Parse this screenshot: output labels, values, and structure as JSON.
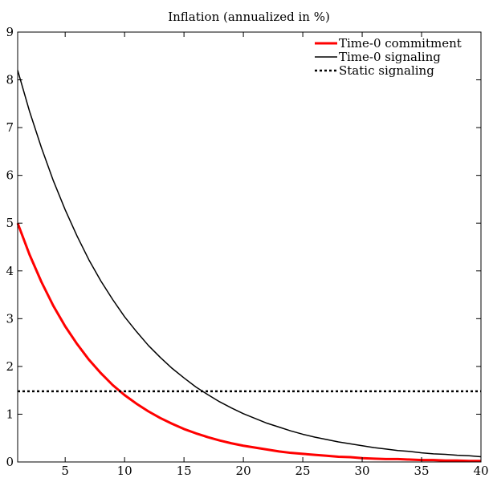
{
  "chart_data": {
    "type": "line",
    "title": "Inflation (annualized in %)",
    "xlabel": "",
    "ylabel": "",
    "xlim": [
      1,
      40
    ],
    "ylim": [
      0,
      9
    ],
    "x_ticks": [
      5,
      10,
      15,
      20,
      25,
      30,
      35,
      40
    ],
    "y_ticks": [
      0,
      1,
      2,
      3,
      4,
      5,
      6,
      7,
      8,
      9
    ],
    "grid": false,
    "legend_position": "top-right",
    "x": [
      1,
      2,
      3,
      4,
      5,
      6,
      7,
      8,
      9,
      10,
      11,
      12,
      13,
      14,
      15,
      16,
      17,
      18,
      19,
      20,
      21,
      22,
      23,
      24,
      25,
      26,
      27,
      28,
      29,
      30,
      31,
      32,
      33,
      34,
      35,
      36,
      37,
      38,
      39,
      40
    ],
    "series": [
      {
        "name": "Time-0 commitment",
        "color": "#ff0000",
        "style": "solid-thick",
        "values": [
          5.0,
          4.34,
          3.77,
          3.27,
          2.84,
          2.47,
          2.14,
          1.86,
          1.61,
          1.4,
          1.22,
          1.06,
          0.92,
          0.8,
          0.69,
          0.6,
          0.52,
          0.45,
          0.39,
          0.34,
          0.3,
          0.26,
          0.22,
          0.19,
          0.17,
          0.15,
          0.13,
          0.11,
          0.1,
          0.08,
          0.07,
          0.06,
          0.06,
          0.05,
          0.04,
          0.04,
          0.03,
          0.03,
          0.02,
          0.02
        ]
      },
      {
        "name": "Time-0 signaling",
        "color": "#000000",
        "style": "solid",
        "values": [
          8.2,
          7.34,
          6.58,
          5.89,
          5.28,
          4.73,
          4.23,
          3.79,
          3.4,
          3.04,
          2.73,
          2.44,
          2.19,
          1.96,
          1.76,
          1.57,
          1.41,
          1.26,
          1.13,
          1.01,
          0.91,
          0.81,
          0.73,
          0.65,
          0.58,
          0.52,
          0.47,
          0.42,
          0.38,
          0.34,
          0.3,
          0.27,
          0.24,
          0.22,
          0.19,
          0.17,
          0.16,
          0.14,
          0.13,
          0.11
        ]
      },
      {
        "name": "Static signaling",
        "color": "#000000",
        "style": "dotted",
        "values": [
          1.48,
          1.48,
          1.48,
          1.48,
          1.48,
          1.48,
          1.48,
          1.48,
          1.48,
          1.48,
          1.48,
          1.48,
          1.48,
          1.48,
          1.48,
          1.48,
          1.48,
          1.48,
          1.48,
          1.48,
          1.48,
          1.48,
          1.48,
          1.48,
          1.48,
          1.48,
          1.48,
          1.48,
          1.48,
          1.48,
          1.48,
          1.48,
          1.48,
          1.48,
          1.48,
          1.48,
          1.48,
          1.48,
          1.48,
          1.48
        ]
      }
    ]
  }
}
